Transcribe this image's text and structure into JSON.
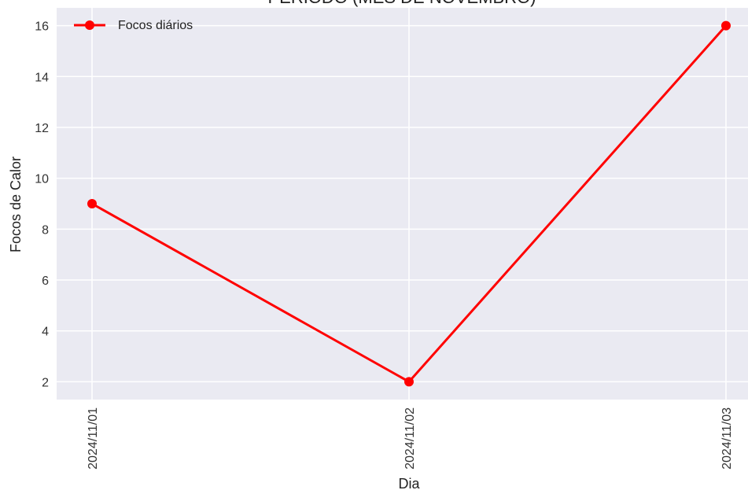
{
  "chart_data": {
    "type": "line",
    "title": "PERÍODO (MÊS DE NOVEMBRO)",
    "xlabel": "Dia",
    "ylabel": "Focos de Calor",
    "categories": [
      "2024/11/01",
      "2024/11/02",
      "2024/11/03"
    ],
    "series": [
      {
        "name": "Focos diários",
        "values": [
          9,
          2,
          16
        ],
        "color": "#ff0000",
        "marker": "circle"
      }
    ],
    "yticks": [
      2,
      4,
      6,
      8,
      10,
      12,
      14,
      16
    ],
    "ylim": [
      1.3,
      16.7
    ],
    "grid": true,
    "legend_position": "top-left",
    "background": "#eaeaf2",
    "grid_color": "#ffffff"
  }
}
